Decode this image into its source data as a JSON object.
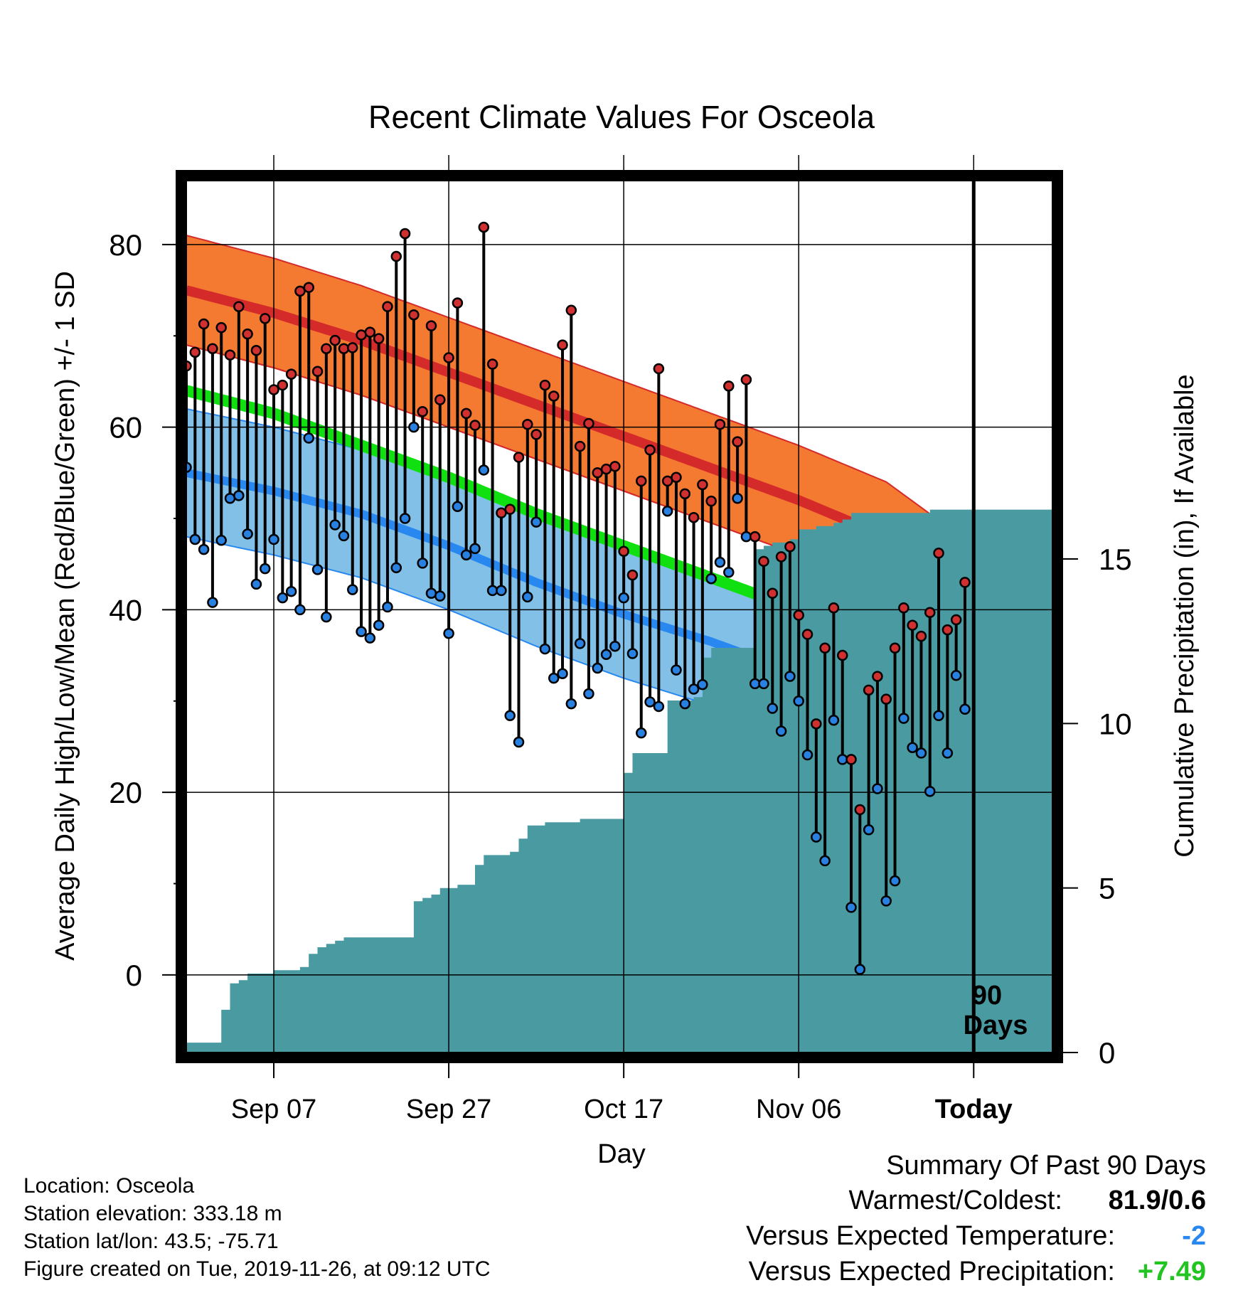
{
  "chart_data": {
    "type": "line",
    "title": "Recent Climate Values For Osceola",
    "xlabel": "Day",
    "ylabel_left": "Average Daily High/Low/Mean (Red/Blue/Green) +/- 1 SD",
    "ylabel_right": "Cumulative Precipitation (in), If Available",
    "ylim_left": [
      -8.5,
      87
    ],
    "ylim_right": [
      0,
      26.5
    ],
    "xlim": [
      -10,
      89
    ],
    "left_ticks": [
      0,
      20,
      40,
      60,
      80
    ],
    "right_ticks": [
      0,
      5,
      10,
      15
    ],
    "x_ticks": [
      {
        "label": "Sep 07",
        "day": 0
      },
      {
        "label": "Sep 27",
        "day": 20
      },
      {
        "label": "Oct 17",
        "day": 40
      },
      {
        "label": "Nov 06",
        "day": 60
      },
      {
        "label": "Today",
        "day": 80
      }
    ],
    "today_label": [
      "90",
      "Days"
    ],
    "colors": {
      "high_band": "#f47a32",
      "high_mean": "#d42a2a",
      "low_band": "#82c0e8",
      "low_mean": "#2888f0",
      "mean": "#10e010",
      "overlap": "#931a1a",
      "precip": "#4a9aa2",
      "high_dot": "#d03030",
      "low_dot": "#2880e0"
    },
    "normal_high": {
      "x": [
        -10,
        0,
        10,
        20,
        30,
        40,
        50,
        60,
        70,
        80,
        89
      ],
      "mean": [
        75,
        72.5,
        69.5,
        66,
        62.5,
        59,
        55.5,
        52,
        48,
        41,
        36.5
      ],
      "sd": 6
    },
    "normal_mean": {
      "x": [
        -10,
        0,
        10,
        20,
        30,
        40,
        50,
        60,
        70,
        80,
        89
      ],
      "mean": [
        64,
        61.5,
        58,
        54.5,
        50.5,
        47,
        43.5,
        40,
        37,
        32,
        28.5
      ]
    },
    "normal_low": {
      "x": [
        -10,
        0,
        10,
        20,
        30,
        40,
        50,
        60,
        70,
        80,
        89
      ],
      "mean": [
        55,
        53,
        50.5,
        47,
        43,
        39.5,
        36.5,
        33,
        30,
        25.5,
        20.5
      ],
      "sd": 7
    },
    "observed": {
      "x": [
        -10,
        -9,
        -8,
        -7,
        -6,
        -5,
        -4,
        -3,
        -2,
        -1,
        0,
        1,
        2,
        3,
        4,
        5,
        6,
        7,
        8,
        9,
        10,
        11,
        12,
        13,
        14,
        15,
        16,
        17,
        18,
        19,
        20,
        21,
        22,
        23,
        24,
        25,
        26,
        27,
        28,
        29,
        30,
        31,
        32,
        33,
        34,
        35,
        36,
        37,
        38,
        39,
        40,
        41,
        42,
        43,
        44,
        45,
        46,
        47,
        48,
        49,
        50,
        51,
        52,
        53,
        54,
        55,
        56,
        57,
        58,
        59,
        60,
        61,
        62,
        63,
        64,
        65,
        66,
        67,
        68,
        69,
        70,
        71,
        72,
        73,
        74,
        75,
        76,
        77,
        78,
        79
      ],
      "high": [
        66.7,
        68.2,
        71.3,
        68.6,
        70.9,
        67.9,
        73.2,
        70.2,
        68.4,
        71.9,
        64.1,
        64.6,
        65.8,
        74.9,
        75.3,
        66.1,
        68.6,
        69.5,
        68.6,
        68.7,
        70.1,
        70.4,
        69.7,
        73.2,
        78.7,
        81.2,
        72.3,
        61.7,
        71.1,
        63,
        67.6,
        73.6,
        61.5,
        60.2,
        81.9,
        66.9,
        50.6,
        51,
        56.7,
        60.3,
        59.2,
        64.6,
        63.4,
        69,
        72.8,
        57.9,
        60.4,
        55,
        55.4,
        55.7,
        46.4,
        43.8,
        54.1,
        57.5,
        66.4,
        54.1,
        54.5,
        52.7,
        50.1,
        53.7,
        51.9,
        60.3,
        64.5,
        58.4,
        65.2,
        48,
        45.3,
        41.8,
        45.8,
        46.9,
        39.4,
        37.3,
        27.5,
        35.8,
        40.2,
        35,
        23.6,
        18.1,
        31.2,
        32.7,
        30.2,
        35.8,
        40.2,
        38.3,
        37.1,
        39.7,
        46.2,
        37.8,
        38.9,
        43
      ],
      "low": [
        55.6,
        47.7,
        46.6,
        40.8,
        47.6,
        52.2,
        52.5,
        48.3,
        42.8,
        44.5,
        47.7,
        41.3,
        42,
        40,
        58.8,
        44.4,
        39.2,
        49.3,
        48.1,
        42.2,
        37.6,
        36.9,
        38.3,
        40.3,
        44.6,
        50,
        60,
        45.1,
        41.8,
        41.5,
        37.4,
        51.3,
        46,
        46.7,
        55.3,
        42.1,
        42.1,
        28.4,
        25.5,
        41.4,
        49.6,
        35.7,
        32.5,
        33,
        29.7,
        36.3,
        30.8,
        33.6,
        35.1,
        36,
        41.3,
        35.2,
        26.5,
        29.9,
        29.4,
        50.8,
        33.4,
        29.7,
        31.3,
        31.8,
        43.4,
        45.2,
        44.1,
        52.2,
        48,
        31.9,
        31.9,
        29.2,
        26.7,
        32.7,
        30,
        24.1,
        15.1,
        12.5,
        27.9,
        23.6,
        7.4,
        0.6,
        15.9,
        20.4,
        8.1,
        10.3,
        28.1,
        24.9,
        24.3,
        20.1,
        28.4,
        24.3,
        32.8,
        29.1
      ]
    },
    "precip": {
      "x": [
        -10,
        -7,
        -6,
        -5,
        -4,
        -3,
        -2,
        -1,
        0,
        1,
        2,
        3,
        4,
        5,
        6,
        7,
        8,
        9,
        10,
        11,
        12,
        13,
        14,
        15,
        16,
        17,
        18,
        19,
        20,
        21,
        22,
        23,
        24,
        25,
        26,
        27,
        28,
        29,
        30,
        31,
        32,
        33,
        34,
        35,
        36,
        37,
        38,
        39,
        40,
        41,
        42,
        43,
        44,
        45,
        46,
        47,
        48,
        49,
        50,
        51,
        52,
        53,
        54,
        55,
        56,
        57,
        58,
        59,
        60,
        61,
        62,
        63,
        64,
        65,
        66,
        67,
        68,
        69,
        70,
        71,
        72,
        73,
        74,
        75,
        76,
        77,
        78,
        79,
        89
      ],
      "values": [
        0.3,
        0.3,
        1.3,
        2.1,
        2.2,
        2.4,
        2.4,
        2.4,
        2.5,
        2.5,
        2.5,
        2.6,
        3.0,
        3.2,
        3.3,
        3.4,
        3.5,
        3.5,
        3.5,
        3.5,
        3.5,
        3.5,
        3.5,
        3.5,
        4.6,
        4.7,
        4.8,
        5.0,
        5.0,
        5.1,
        5.1,
        5.7,
        6.0,
        6.0,
        6.0,
        6.1,
        6.5,
        6.9,
        6.9,
        7.0,
        7.0,
        7.0,
        7.0,
        7.1,
        7.1,
        7.1,
        7.1,
        7.1,
        8.5,
        9.1,
        9.1,
        9.1,
        9.1,
        10.7,
        10.7,
        10.7,
        10.8,
        12.0,
        12.3,
        12.3,
        12.3,
        12.3,
        12.3,
        15.3,
        15.4,
        15.5,
        15.5,
        15.6,
        15.9,
        15.9,
        16.0,
        16.0,
        16.1,
        16.2,
        16.4,
        16.4,
        16.4,
        16.4,
        16.4,
        16.4,
        16.4,
        16.4,
        16.4,
        16.5,
        16.5,
        16.5,
        16.5,
        16.5,
        16.5
      ]
    }
  },
  "info": {
    "location": "Location: Osceola",
    "elevation": "Station elevation: 333.18 m",
    "latlon": "Station lat/lon: 43.5; -75.71",
    "created": "Figure created on Tue, 2019-11-26, at 09:12 UTC"
  },
  "summary": {
    "heading": "Summary Of Past 90 Days",
    "warmest_label": "Warmest/Coldest:",
    "warmest_value": "81.9/0.6",
    "temp_label": "Versus Expected Temperature:",
    "temp_value": "-2",
    "precip_label": "Versus Expected Precipitation:",
    "precip_value": "+7.49",
    "temp_color": "#2888f0",
    "precip_color": "#22c422"
  }
}
